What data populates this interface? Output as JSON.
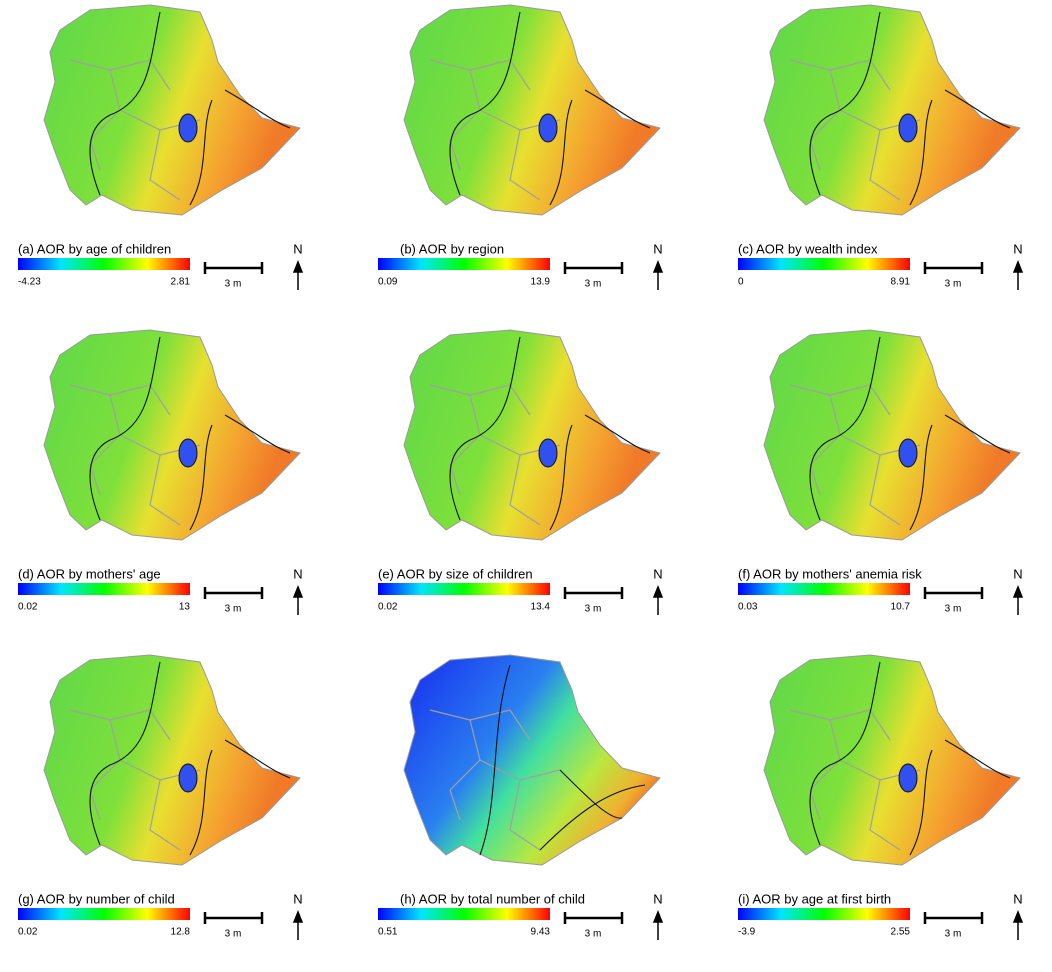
{
  "panels": [
    {
      "title": "(a) AOR by age of children",
      "min": -4.23,
      "max": 2.81
    },
    {
      "title": "(b) AOR by region",
      "min": 0.09,
      "max": 13.9
    },
    {
      "title": "(c) AOR by wealth index",
      "min": 0,
      "max": 8.91
    },
    {
      "title": "(d) AOR by mothers' age",
      "min": 0.02,
      "max": 13
    },
    {
      "title": "(e) AOR by size of children",
      "min": 0.02,
      "max": 13.4
    },
    {
      "title": "(f) AOR by mothers' anemia risk",
      "min": 0.03,
      "max": 10.7
    },
    {
      "title": "(g) AOR by number of child",
      "min": 0.02,
      "max": 12.8
    },
    {
      "title": "(h) AOR by total number of child",
      "min": 0.51,
      "max": 9.43
    },
    {
      "title": "(i) AOR by age at first birth",
      "min": -3.9,
      "max": 2.55
    }
  ],
  "scale_label": "3 m",
  "north": "N"
}
